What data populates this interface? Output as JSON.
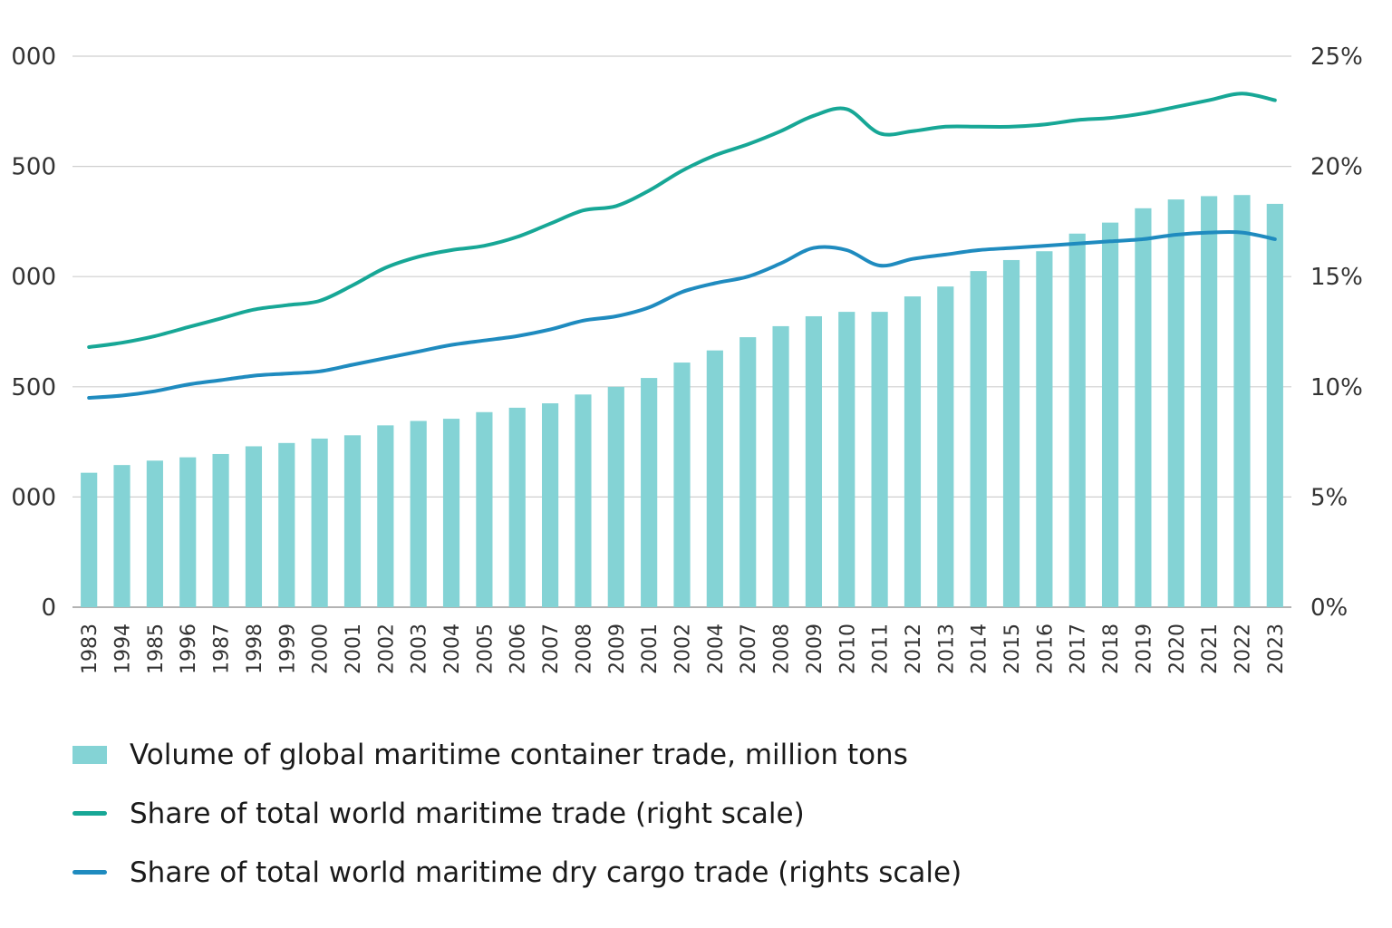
{
  "chart_data": {
    "type": "bar",
    "categories": [
      "1983",
      "1994",
      "1985",
      "1996",
      "1987",
      "1998",
      "1999",
      "2000",
      "2001",
      "2002",
      "2003",
      "2004",
      "2005",
      "2006",
      "2007",
      "2008",
      "2009",
      "2001",
      "2002",
      "2004",
      "2007",
      "2008",
      "2009",
      "2010",
      "2011",
      "2012",
      "2013",
      "2014",
      "2015",
      "2016",
      "2017",
      "2018",
      "2019",
      "2020",
      "2021",
      "2022",
      "2023"
    ],
    "left_axis": {
      "ticks": [
        "0",
        "000",
        "500",
        "000",
        "500",
        "000"
      ],
      "ylim": [
        0,
        2500
      ],
      "tick_values": [
        0,
        500,
        1000,
        1500,
        2000,
        2500
      ]
    },
    "right_axis": {
      "ticks": [
        "0%",
        "5%",
        "10%",
        "15%",
        "20%",
        "25%"
      ],
      "ylim": [
        0,
        25
      ],
      "tick_values": [
        0,
        5,
        10,
        15,
        20,
        25
      ]
    },
    "series": [
      {
        "name": "Volume of global maritime container trade, million tons",
        "type": "bar",
        "axis": "left",
        "color": "#84d3d5",
        "values": [
          610,
          645,
          665,
          680,
          695,
          730,
          745,
          765,
          780,
          825,
          845,
          855,
          885,
          905,
          925,
          965,
          1000,
          1040,
          1110,
          1165,
          1225,
          1275,
          1320,
          1340,
          1340,
          1410,
          1455,
          1525,
          1575,
          1615,
          1695,
          1745,
          1810,
          1850,
          1865,
          1870,
          1830
        ]
      },
      {
        "name": "Share of total world maritime trade (right scale)",
        "type": "line",
        "axis": "right",
        "color": "#17a796",
        "values": [
          11.8,
          12.0,
          12.3,
          12.7,
          13.1,
          13.5,
          13.7,
          13.9,
          14.6,
          15.4,
          15.9,
          16.2,
          16.4,
          16.8,
          17.4,
          18.0,
          18.2,
          18.9,
          19.8,
          20.5,
          21.0,
          21.6,
          22.3,
          22.6,
          21.5,
          21.6,
          21.8,
          21.8,
          21.8,
          21.9,
          22.1,
          22.2,
          22.4,
          22.7,
          23.0,
          23.3,
          23.0
        ]
      },
      {
        "name": "Share of total world maritime dry cargo trade (rights scale)",
        "type": "line",
        "axis": "right",
        "color": "#1f8bbf",
        "values": [
          9.5,
          9.6,
          9.8,
          10.1,
          10.3,
          10.5,
          10.6,
          10.7,
          11.0,
          11.3,
          11.6,
          11.9,
          12.1,
          12.3,
          12.6,
          13.0,
          13.2,
          13.6,
          14.3,
          14.7,
          15.0,
          15.6,
          16.3,
          16.2,
          15.5,
          15.8,
          16.0,
          16.2,
          16.3,
          16.4,
          16.5,
          16.6,
          16.7,
          16.9,
          17.0,
          17.0,
          16.7
        ]
      }
    ],
    "grid": true,
    "legend_position": "bottom-left"
  }
}
